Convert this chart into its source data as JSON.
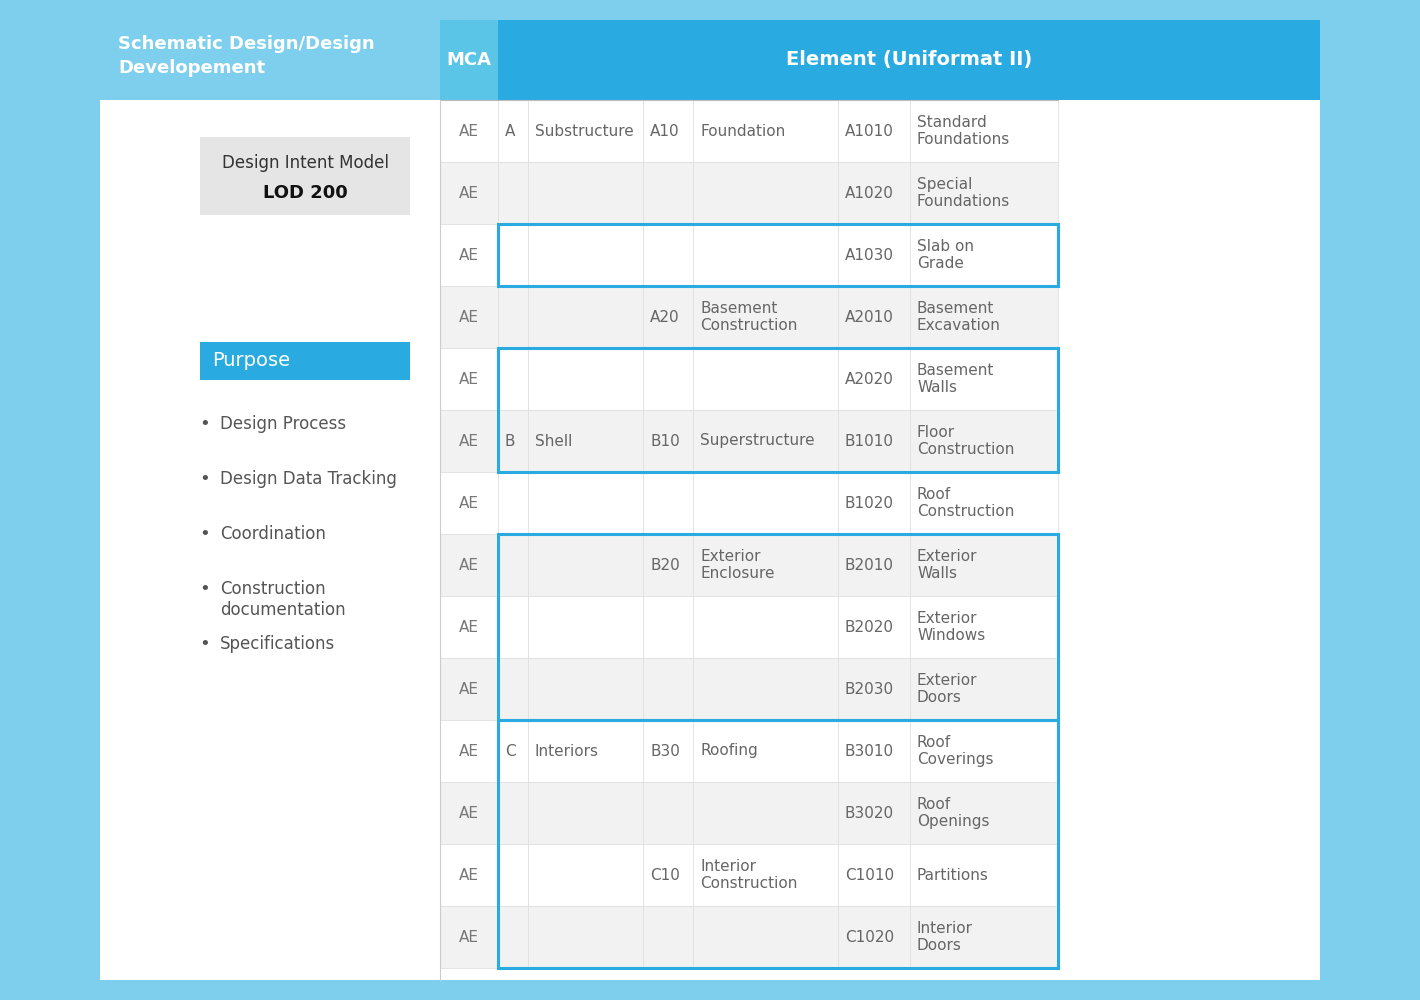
{
  "bg_color": "#7dcfed",
  "header_blue_left": "#7dcfed",
  "header_blue_right": "#29abe2",
  "mca_header_blue": "#5bc5e8",
  "cell_white": "#ffffff",
  "cell_light": "#f2f2f2",
  "border_blue": "#29abe2",
  "text_dark": "#666666",
  "text_white": "#ffffff",
  "outer_bg": "#7dcfed",
  "inner_bg": "#ffffff",
  "header_col1": "Schematic Design/Design\nDevelopement",
  "header_col2": "MCA",
  "header_col3": "Element (Uniformat II)",
  "purpose_label": "Purpose",
  "purpose_items": [
    "Design Process",
    "Design Data Tracking",
    "Coordination",
    "Construction\ndocumentation",
    "Specifications"
  ],
  "lod_box_text1": "Design Intent Model",
  "lod_box_text2": "LOD 200",
  "rows": [
    {
      "mca": "AE",
      "col_a": "A",
      "col_b": "Substructure",
      "col_c": "A10",
      "col_d": "Foundation",
      "col_e": "A1010",
      "col_f": "Standard\nFoundations",
      "bg": "white"
    },
    {
      "mca": "AE",
      "col_a": "",
      "col_b": "",
      "col_c": "",
      "col_d": "",
      "col_e": "A1020",
      "col_f": "Special\nFoundations",
      "bg": "light"
    },
    {
      "mca": "AE",
      "col_a": "",
      "col_b": "",
      "col_c": "",
      "col_d": "",
      "col_e": "A1030",
      "col_f": "Slab on\nGrade",
      "bg": "white"
    },
    {
      "mca": "AE",
      "col_a": "",
      "col_b": "",
      "col_c": "A20",
      "col_d": "Basement\nConstruction",
      "col_e": "A2010",
      "col_f": "Basement\nExcavation",
      "bg": "light"
    },
    {
      "mca": "AE",
      "col_a": "",
      "col_b": "",
      "col_c": "",
      "col_d": "",
      "col_e": "A2020",
      "col_f": "Basement\nWalls",
      "bg": "white"
    },
    {
      "mca": "AE",
      "col_a": "B",
      "col_b": "Shell",
      "col_c": "B10",
      "col_d": "Superstructure",
      "col_e": "B1010",
      "col_f": "Floor\nConstruction",
      "bg": "light"
    },
    {
      "mca": "AE",
      "col_a": "",
      "col_b": "",
      "col_c": "",
      "col_d": "",
      "col_e": "B1020",
      "col_f": "Roof\nConstruction",
      "bg": "white"
    },
    {
      "mca": "AE",
      "col_a": "",
      "col_b": "",
      "col_c": "B20",
      "col_d": "Exterior\nEnclosure",
      "col_e": "B2010",
      "col_f": "Exterior\nWalls",
      "bg": "light"
    },
    {
      "mca": "AE",
      "col_a": "",
      "col_b": "",
      "col_c": "",
      "col_d": "",
      "col_e": "B2020",
      "col_f": "Exterior\nWindows",
      "bg": "white"
    },
    {
      "mca": "AE",
      "col_a": "",
      "col_b": "",
      "col_c": "",
      "col_d": "",
      "col_e": "B2030",
      "col_f": "Exterior\nDoors",
      "bg": "light"
    },
    {
      "mca": "AE",
      "col_a": "C",
      "col_b": "Interiors",
      "col_c": "B30",
      "col_d": "Roofing",
      "col_e": "B3010",
      "col_f": "Roof\nCoverings",
      "bg": "white"
    },
    {
      "mca": "AE",
      "col_a": "",
      "col_b": "",
      "col_c": "",
      "col_d": "",
      "col_e": "B3020",
      "col_f": "Roof\nOpenings",
      "bg": "light"
    },
    {
      "mca": "AE",
      "col_a": "",
      "col_b": "",
      "col_c": "C10",
      "col_d": "Interior\nConstruction",
      "col_e": "C1010",
      "col_f": "Partitions",
      "bg": "white"
    },
    {
      "mca": "AE",
      "col_a": "",
      "col_b": "",
      "col_c": "",
      "col_d": "",
      "col_e": "C1020",
      "col_f": "Interior\nDoors",
      "bg": "light"
    }
  ],
  "border_groups": [
    [
      2
    ],
    [
      4,
      5
    ],
    [
      7,
      8,
      9
    ],
    [
      10,
      11,
      12,
      13
    ]
  ]
}
